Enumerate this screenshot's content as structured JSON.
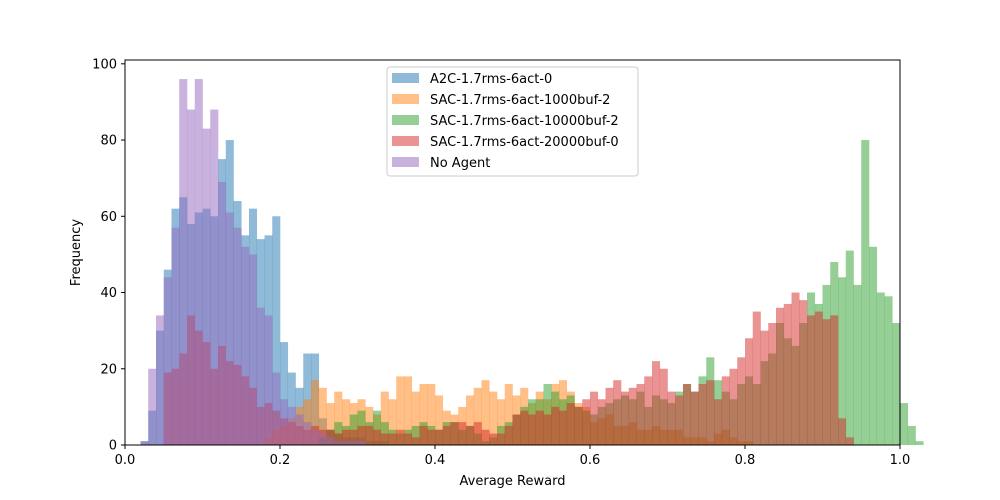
{
  "chart_data": {
    "type": "bar",
    "subtype": "overlapping-histogram",
    "title": "",
    "xlabel": "Average Reward",
    "ylabel": "Frequency",
    "xlim": [
      0.0,
      1.0
    ],
    "ylim": [
      0,
      101
    ],
    "x_ticks": [
      "0.0",
      "0.2",
      "0.4",
      "0.6",
      "0.8",
      "1.0"
    ],
    "y_ticks": [
      "0",
      "20",
      "40",
      "60",
      "80",
      "100"
    ],
    "grid": false,
    "legend_position": "top-center",
    "bin_width": 0.01,
    "series": [
      {
        "name": "A2C-1.7rms-6act-0",
        "color": "#1f77b4",
        "bin_start": 0.02,
        "counts": [
          1,
          9,
          30,
          46,
          62,
          65,
          58,
          61,
          62,
          60,
          75,
          80,
          64,
          55,
          62,
          54,
          55,
          60,
          27,
          19,
          15,
          24,
          24,
          7,
          4,
          3,
          2,
          2,
          2,
          1,
          1,
          1
        ]
      },
      {
        "name": "SAC-1.7rms-6act-1000buf-2",
        "color": "#ff7f0e",
        "bin_start": 0.18,
        "counts": [
          2,
          4,
          5,
          7,
          10,
          12,
          17,
          15,
          11,
          14,
          12,
          11,
          12,
          10,
          8,
          14,
          12,
          18,
          18,
          14,
          16,
          16,
          13,
          9,
          8,
          10,
          13,
          15,
          17,
          14,
          12,
          16,
          13,
          15,
          11,
          14,
          12,
          16,
          17,
          14,
          11,
          10,
          6,
          7,
          8,
          5,
          5,
          6,
          4,
          4,
          5,
          4,
          4,
          4,
          2,
          2,
          2,
          1,
          3,
          4,
          2,
          1,
          1
        ]
      },
      {
        "name": "SAC-1.7rms-6act-10000buf-2",
        "color": "#2ca02c",
        "bin_start": 0.25,
        "counts": [
          2,
          4,
          6,
          5,
          8,
          9,
          6,
          9,
          6,
          4,
          3,
          4,
          5,
          6,
          5,
          4,
          6,
          6,
          4,
          5,
          3,
          1,
          2,
          5,
          6,
          8,
          10,
          12,
          12,
          16,
          14,
          12,
          13,
          10,
          9,
          8,
          10,
          11,
          12,
          13,
          12,
          14,
          10,
          13,
          12,
          11,
          14,
          16,
          14,
          18,
          23,
          17,
          14,
          12,
          16,
          18,
          16,
          22,
          24,
          32,
          28,
          26,
          32,
          40,
          37,
          42,
          48,
          44,
          51,
          42,
          80,
          52,
          40,
          39,
          32,
          11,
          5,
          1
        ]
      },
      {
        "name": "SAC-1.7rms-6act-20000buf-0",
        "color": "#d62728",
        "bin_start": 0.05,
        "counts": [
          19,
          20,
          24,
          34,
          30,
          27,
          20,
          26,
          22,
          21,
          18,
          15,
          10,
          11,
          9,
          7,
          6,
          5,
          4,
          5,
          4,
          4,
          3,
          4,
          4,
          5,
          5,
          4,
          3,
          3,
          4,
          3,
          2,
          5,
          4,
          4,
          5,
          6,
          6,
          5,
          6,
          4,
          3,
          3,
          5,
          8,
          9,
          8,
          9,
          8,
          10,
          9,
          11,
          10,
          12,
          14,
          12,
          15,
          17,
          14,
          15,
          16,
          18,
          22,
          20,
          14,
          13,
          16,
          14,
          16,
          17,
          12,
          18,
          20,
          23,
          28,
          35,
          30,
          32,
          36,
          37,
          40,
          38,
          34,
          35,
          33,
          34,
          7,
          2
        ]
      },
      {
        "name": "No Agent",
        "color": "#9467bd",
        "bin_start": 0.02,
        "counts": [
          1,
          20,
          34,
          44,
          57,
          96,
          88,
          96,
          83,
          88,
          69,
          61,
          57,
          52,
          50,
          36,
          34,
          19,
          12,
          10,
          8,
          6,
          4,
          3,
          2,
          1,
          1,
          1,
          1
        ]
      }
    ]
  }
}
